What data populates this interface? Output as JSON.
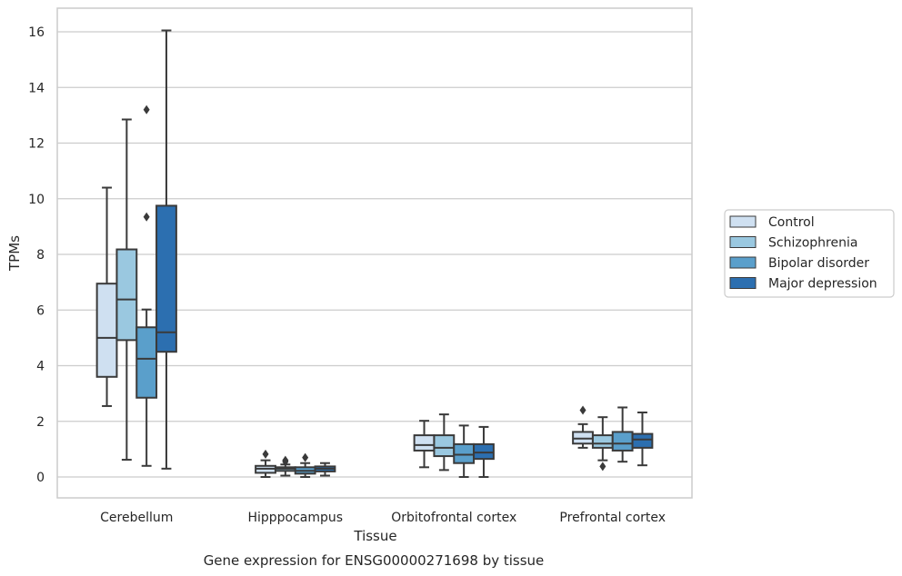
{
  "caption": "Gene expression for ENSG00000271698 by tissue",
  "chart_data": {
    "type": "box",
    "xlabel": "Tissue",
    "ylabel": "TPMs",
    "ylim": [
      -0.75,
      16.85
    ],
    "yticks": [
      0,
      2,
      4,
      6,
      8,
      10,
      12,
      14,
      16
    ],
    "grid": "horizontal",
    "legend_position": "right",
    "categories": [
      "Cerebellum",
      "Hipppocampus",
      "Orbitofrontal cortex",
      "Prefrontal cortex"
    ],
    "series": [
      {
        "name": "Control",
        "color": "#cfe0f1",
        "boxes": [
          {
            "whislo": 2.55,
            "q1": 3.6,
            "med": 5.0,
            "q3": 6.95,
            "whishi": 10.4,
            "fliers": []
          },
          {
            "whislo": 0.0,
            "q1": 0.15,
            "med": 0.3,
            "q3": 0.4,
            "whishi": 0.6,
            "fliers": [
              0.82
            ]
          },
          {
            "whislo": 0.35,
            "q1": 0.95,
            "med": 1.15,
            "q3": 1.5,
            "whishi": 2.02,
            "fliers": []
          },
          {
            "whislo": 1.05,
            "q1": 1.2,
            "med": 1.38,
            "q3": 1.62,
            "whishi": 1.9,
            "fliers": [
              2.4
            ]
          }
        ]
      },
      {
        "name": "Schizophrenia",
        "color": "#9ac8e0",
        "boxes": [
          {
            "whislo": 0.62,
            "q1": 4.92,
            "med": 6.38,
            "q3": 8.18,
            "whishi": 12.85,
            "fliers": []
          },
          {
            "whislo": 0.05,
            "q1": 0.22,
            "med": 0.3,
            "q3": 0.35,
            "whishi": 0.45,
            "fliers": [
              0.6,
              0.55
            ]
          },
          {
            "whislo": 0.25,
            "q1": 0.75,
            "med": 1.05,
            "q3": 1.5,
            "whishi": 2.25,
            "fliers": []
          },
          {
            "whislo": 0.6,
            "q1": 1.05,
            "med": 1.2,
            "q3": 1.5,
            "whishi": 2.15,
            "fliers": [
              0.38
            ]
          }
        ]
      },
      {
        "name": "Bipolar disorder",
        "color": "#5a9fcb",
        "boxes": [
          {
            "whislo": 0.4,
            "q1": 2.85,
            "med": 4.25,
            "q3": 5.38,
            "whishi": 6.02,
            "fliers": [
              9.35,
              13.2
            ]
          },
          {
            "whislo": 0.0,
            "q1": 0.12,
            "med": 0.22,
            "q3": 0.35,
            "whishi": 0.5,
            "fliers": [
              0.7
            ]
          },
          {
            "whislo": 0.0,
            "q1": 0.5,
            "med": 0.8,
            "q3": 1.18,
            "whishi": 1.85,
            "fliers": []
          },
          {
            "whislo": 0.55,
            "q1": 0.95,
            "med": 1.2,
            "q3": 1.62,
            "whishi": 2.5,
            "fliers": []
          }
        ]
      },
      {
        "name": "Major depression",
        "color": "#2c6fb0",
        "boxes": [
          {
            "whislo": 0.3,
            "q1": 4.5,
            "med": 5.2,
            "q3": 9.75,
            "whishi": 16.05,
            "fliers": []
          },
          {
            "whislo": 0.05,
            "q1": 0.2,
            "med": 0.3,
            "q3": 0.38,
            "whishi": 0.5,
            "fliers": []
          },
          {
            "whislo": 0.0,
            "q1": 0.65,
            "med": 0.88,
            "q3": 1.18,
            "whishi": 1.8,
            "fliers": []
          },
          {
            "whislo": 0.42,
            "q1": 1.05,
            "med": 1.35,
            "q3": 1.55,
            "whishi": 2.32,
            "fliers": []
          }
        ]
      }
    ]
  }
}
